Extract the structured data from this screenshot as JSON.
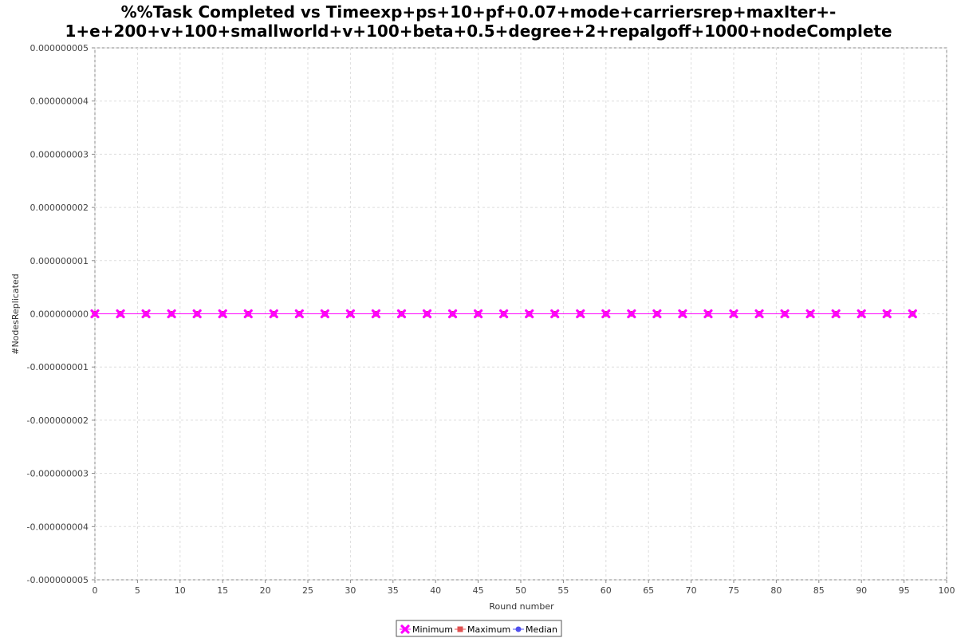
{
  "chart_data": {
    "type": "line",
    "title_lines": [
      "%%Task Completed vs Timeexp+ps+10+pf+0.07+mode+carriersrep+maxIter+-",
      "1+e+200+v+100+smallworld+v+100+beta+0.5+degree+2+repalgoff+1000+nodeComplete"
    ],
    "xlabel": "Round number",
    "ylabel": "#NodesReplicated",
    "xlim": [
      0,
      100
    ],
    "ylim": [
      -5e-09,
      5e-09
    ],
    "x_ticks": [
      "0",
      "5",
      "10",
      "15",
      "20",
      "25",
      "30",
      "35",
      "40",
      "45",
      "50",
      "55",
      "60",
      "65",
      "70",
      "75",
      "80",
      "85",
      "90",
      "95",
      "100"
    ],
    "y_ticks": [
      "0.000000005",
      "0.000000004",
      "0.000000003",
      "0.000000002",
      "0.000000001",
      "0.000000000",
      "-0.000000001",
      "-0.000000002",
      "-0.000000003",
      "-0.000000004",
      "-0.000000005"
    ],
    "grid": true,
    "legend_position": "bottom-center",
    "series": [
      {
        "name": "Minimum",
        "color": "#ff00ff",
        "marker": "x-cross",
        "x": [
          0,
          3,
          6,
          9,
          12,
          15,
          18,
          21,
          24,
          27,
          30,
          33,
          36,
          39,
          42,
          45,
          48,
          51,
          54,
          57,
          60,
          63,
          66,
          69,
          72,
          75,
          78,
          81,
          84,
          87,
          90,
          93,
          96
        ],
        "y": [
          0,
          0,
          0,
          0,
          0,
          0,
          0,
          0,
          0,
          0,
          0,
          0,
          0,
          0,
          0,
          0,
          0,
          0,
          0,
          0,
          0,
          0,
          0,
          0,
          0,
          0,
          0,
          0,
          0,
          0,
          0,
          0,
          0
        ]
      },
      {
        "name": "Maximum",
        "color": "#e05050",
        "marker": "square",
        "x": [
          0,
          3,
          6,
          9,
          12,
          15,
          18,
          21,
          24,
          27,
          30,
          33,
          36,
          39,
          42,
          45,
          48,
          51,
          54,
          57,
          60,
          63,
          66,
          69,
          72,
          75,
          78,
          81,
          84,
          87,
          90,
          93,
          96
        ],
        "y": [
          0,
          0,
          0,
          0,
          0,
          0,
          0,
          0,
          0,
          0,
          0,
          0,
          0,
          0,
          0,
          0,
          0,
          0,
          0,
          0,
          0,
          0,
          0,
          0,
          0,
          0,
          0,
          0,
          0,
          0,
          0,
          0,
          0
        ]
      },
      {
        "name": "Median",
        "color": "#5050ee",
        "marker": "circle",
        "x": [
          0,
          3,
          6,
          9,
          12,
          15,
          18,
          21,
          24,
          27,
          30,
          33,
          36,
          39,
          42,
          45,
          48,
          51,
          54,
          57,
          60,
          63,
          66,
          69,
          72,
          75,
          78,
          81,
          84,
          87,
          90,
          93,
          96
        ],
        "y": [
          0,
          0,
          0,
          0,
          0,
          0,
          0,
          0,
          0,
          0,
          0,
          0,
          0,
          0,
          0,
          0,
          0,
          0,
          0,
          0,
          0,
          0,
          0,
          0,
          0,
          0,
          0,
          0,
          0,
          0,
          0,
          0,
          0
        ]
      }
    ]
  }
}
